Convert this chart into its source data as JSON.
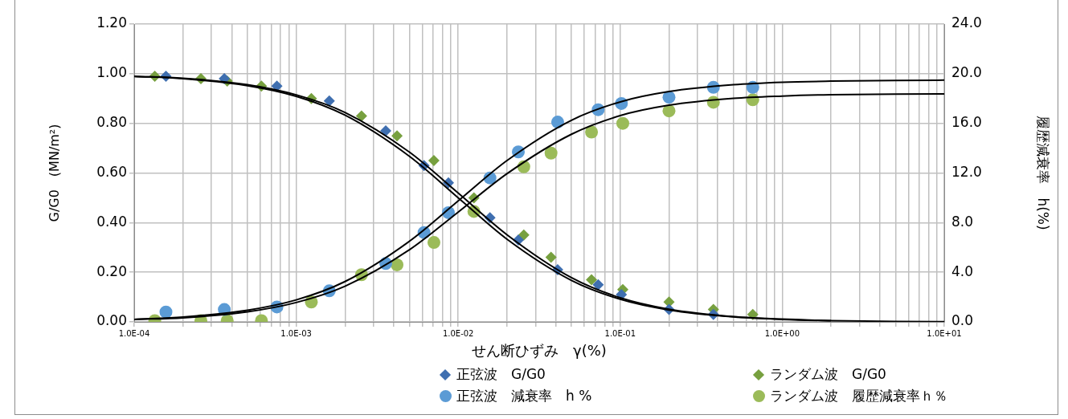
{
  "chart_data": {
    "type": "scatter",
    "xlabel": "せん断ひずみ　γ(%)",
    "ylabel": "G/G0　(MN/m²)",
    "y2label": "履歴減衰率　h(%)",
    "log": "x",
    "grid": true,
    "legend": "bottom",
    "xlim": [
      0.0001,
      10
    ],
    "xticks": [
      {
        "value": 0.0001,
        "label": "1.0E-04"
      },
      {
        "value": 0.0002,
        "label": null
      },
      {
        "value": 0.0003,
        "label": null
      },
      {
        "value": 0.0004,
        "label": null
      },
      {
        "value": 0.0005,
        "label": null
      },
      {
        "value": 0.0006,
        "label": null
      },
      {
        "value": 0.0007,
        "label": null
      },
      {
        "value": 0.0008,
        "label": null
      },
      {
        "value": 0.0009,
        "label": null
      },
      {
        "value": 0.001,
        "label": "1.0E-03"
      },
      {
        "value": 0.002,
        "label": null
      },
      {
        "value": 0.003,
        "label": null
      },
      {
        "value": 0.004,
        "label": null
      },
      {
        "value": 0.005,
        "label": null
      },
      {
        "value": 0.006,
        "label": null
      },
      {
        "value": 0.007,
        "label": null
      },
      {
        "value": 0.008,
        "label": null
      },
      {
        "value": 0.009,
        "label": null
      },
      {
        "value": 0.01,
        "label": "1.0E-02"
      },
      {
        "value": 0.02,
        "label": null
      },
      {
        "value": 0.03,
        "label": null
      },
      {
        "value": 0.04,
        "label": null
      },
      {
        "value": 0.05,
        "label": null
      },
      {
        "value": 0.06,
        "label": null
      },
      {
        "value": 0.07,
        "label": null
      },
      {
        "value": 0.08,
        "label": null
      },
      {
        "value": 0.09,
        "label": null
      },
      {
        "value": 0.1,
        "label": "1.0E-01"
      },
      {
        "value": 0.2,
        "label": null
      },
      {
        "value": 0.3,
        "label": null
      },
      {
        "value": 0.4,
        "label": null
      },
      {
        "value": 0.5,
        "label": null
      },
      {
        "value": 0.6,
        "label": null
      },
      {
        "value": 0.7,
        "label": null
      },
      {
        "value": 0.8,
        "label": null
      },
      {
        "value": 0.9,
        "label": null
      },
      {
        "value": 1,
        "label": "1.0E+00"
      },
      {
        "value": 2,
        "label": null
      },
      {
        "value": 3,
        "label": null
      },
      {
        "value": 4,
        "label": null
      },
      {
        "value": 5,
        "label": null
      },
      {
        "value": 6,
        "label": null
      },
      {
        "value": 7,
        "label": null
      },
      {
        "value": 8,
        "label": null
      },
      {
        "value": 9,
        "label": null
      },
      {
        "value": 10,
        "label": "1.0E+01"
      }
    ],
    "ylim": [
      0,
      1.2
    ],
    "yticks": [
      {
        "value": 0,
        "label": "0.00"
      },
      {
        "value": 0.2,
        "label": "0.20"
      },
      {
        "value": 0.4,
        "label": "0.40"
      },
      {
        "value": 0.6,
        "label": "0.60"
      },
      {
        "value": 0.8,
        "label": "0.80"
      },
      {
        "value": 1,
        "label": "1.00"
      },
      {
        "value": 1.2,
        "label": "1.20"
      }
    ],
    "y2lim": [
      0,
      24
    ],
    "y2ticks": [
      {
        "value": 0,
        "label": "0.0"
      },
      {
        "value": 4,
        "label": "4.0"
      },
      {
        "value": 8,
        "label": "8.0"
      },
      {
        "value": 12,
        "label": "12.0"
      },
      {
        "value": 16,
        "label": "16.0"
      },
      {
        "value": 20,
        "label": "20.0"
      },
      {
        "value": 24,
        "label": "24.0"
      }
    ],
    "series": [
      {
        "name": "正弦波　G/G0",
        "type": "scatter",
        "marker": "diamond",
        "color": "#3f6fb0",
        "x": [
          0.000157,
          0.00036,
          0.00076,
          0.0016,
          0.00357,
          0.00615,
          0.0087,
          0.0157,
          0.0235,
          0.0411,
          0.0731,
          0.1017,
          0.2,
          0.376
        ],
        "values": [
          0.99,
          0.98,
          0.95,
          0.89,
          0.77,
          0.63,
          0.56,
          0.42,
          0.33,
          0.21,
          0.15,
          0.11,
          0.05,
          0.03
        ]
      },
      {
        "name": "ランダム波　G/G0",
        "type": "scatter",
        "marker": "diamond",
        "color": "#77a03f",
        "x": [
          0.000134,
          0.000258,
          0.000375,
          0.00061,
          0.00124,
          0.00253,
          0.00419,
          0.00708,
          0.0125,
          0.0254,
          0.0374,
          0.0665,
          0.1037,
          0.2,
          0.376,
          0.658
        ],
        "values": [
          0.99,
          0.98,
          0.97,
          0.95,
          0.9,
          0.83,
          0.75,
          0.65,
          0.5,
          0.35,
          0.26,
          0.17,
          0.13,
          0.08,
          0.05,
          0.03
        ]
      },
      {
        "name": "正弦波　減衰率　h %",
        "type": "scatter",
        "axis": "y2",
        "marker": "circle",
        "color": "#5b9bd5",
        "x": [
          0.000157,
          0.00036,
          0.00076,
          0.0016,
          0.00357,
          0.00615,
          0.0087,
          0.0157,
          0.0235,
          0.0411,
          0.0731,
          0.1017,
          0.2,
          0.376,
          0.658
        ],
        "values": [
          0.8,
          1.0,
          1.2,
          2.5,
          4.7,
          7.2,
          8.8,
          11.6,
          13.7,
          16.1,
          17.1,
          17.6,
          18.1,
          18.9,
          18.9
        ]
      },
      {
        "name": "ランダム波　履歴減衰率ｈ％",
        "type": "scatter",
        "axis": "y2",
        "marker": "circle",
        "color": "#9bbb59",
        "x": [
          0.000134,
          0.000258,
          0.000375,
          0.00061,
          0.00124,
          0.00253,
          0.00419,
          0.00708,
          0.0125,
          0.0254,
          0.0374,
          0.0665,
          0.1037,
          0.2,
          0.376,
          0.658
        ],
        "values": [
          0.1,
          0.1,
          0.1,
          0.1,
          1.6,
          3.8,
          4.6,
          6.4,
          8.9,
          12.5,
          13.6,
          15.3,
          16.0,
          17.0,
          17.7,
          17.9
        ]
      },
      {
        "type": "line",
        "marker": "none",
        "color": "#000000",
        "x": [
          0.0001,
          0.0002,
          0.0005,
          0.001,
          0.002,
          0.005,
          0.01,
          0.02,
          0.05,
          0.1,
          0.2,
          0.5,
          1,
          2,
          5,
          10
        ],
        "values": [
          0.99,
          0.98,
          0.952,
          0.909,
          0.833,
          0.667,
          0.5,
          0.333,
          0.167,
          0.091,
          0.048,
          0.02,
          0.01,
          0.005,
          0.002,
          0.001
        ]
      },
      {
        "type": "line",
        "marker": "none",
        "color": "#000000",
        "x": [
          0.0001,
          0.0002,
          0.0005,
          0.001,
          0.002,
          0.005,
          0.01,
          0.02,
          0.05,
          0.1,
          0.2,
          0.5,
          1,
          2
        ],
        "values": [
          0.989,
          0.982,
          0.956,
          0.915,
          0.844,
          0.684,
          0.519,
          0.351,
          0.178,
          0.097,
          0.051,
          0.021,
          0.011,
          0.005
        ]
      },
      {
        "type": "line",
        "axis": "y2",
        "marker": "none",
        "color": "#000000",
        "x": [
          0.0001,
          0.0002,
          0.0005,
          0.001,
          0.002,
          0.005,
          0.01,
          0.02,
          0.05,
          0.1,
          0.2,
          0.5,
          1,
          2,
          5,
          10
        ],
        "values": [
          0.2,
          0.39,
          0.94,
          1.77,
          3.25,
          6.5,
          9.75,
          13.0,
          16.25,
          17.73,
          18.56,
          19.11,
          19.31,
          19.4,
          19.46,
          19.48
        ]
      },
      {
        "type": "line",
        "axis": "y2",
        "marker": "none",
        "color": "#000000",
        "x": [
          0.0001,
          0.0002,
          0.0005,
          0.001,
          0.002,
          0.005,
          0.01,
          0.02,
          0.05,
          0.1,
          0.2,
          0.5,
          1,
          2,
          5,
          10
        ],
        "values": [
          0.2,
          0.33,
          0.81,
          1.56,
          2.87,
          5.81,
          8.85,
          11.94,
          15.12,
          16.62,
          17.46,
          18.01,
          18.2,
          18.31,
          18.36,
          18.38
        ]
      }
    ]
  }
}
